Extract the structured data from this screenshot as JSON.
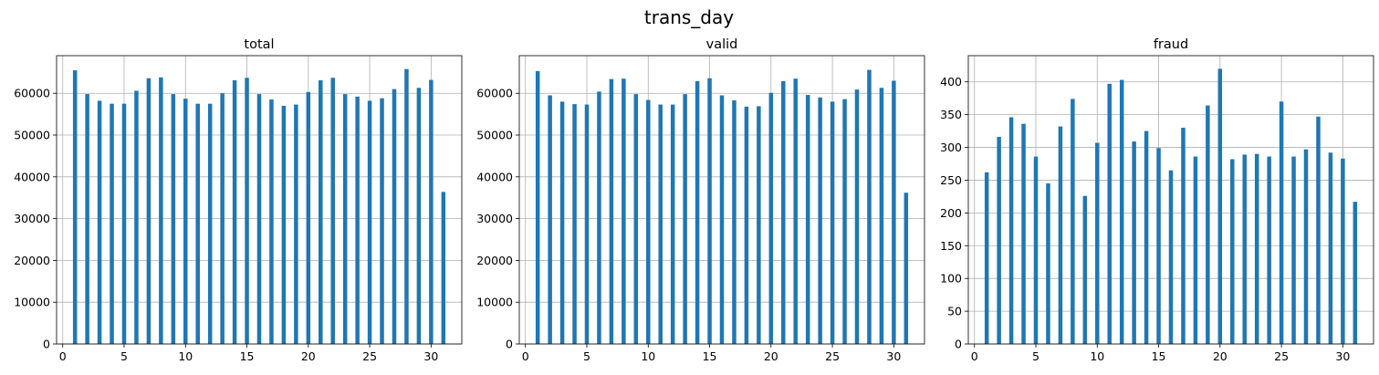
{
  "figure": {
    "suptitle": "trans_day"
  },
  "chart_data": [
    {
      "type": "bar",
      "title": "total",
      "xlabel": "",
      "ylabel": "",
      "xlim": [
        -0.5,
        32.5
      ],
      "ylim": [
        0,
        69000
      ],
      "grid": true,
      "x_ticks": [
        0,
        5,
        10,
        15,
        20,
        25,
        30
      ],
      "y_ticks": [
        0,
        10000,
        20000,
        30000,
        40000,
        50000,
        60000
      ],
      "bar_color": "#1f77b4",
      "x": [
        1,
        2,
        3,
        4,
        5,
        6,
        7,
        8,
        9,
        10,
        11,
        12,
        13,
        14,
        15,
        16,
        17,
        18,
        19,
        20,
        21,
        22,
        23,
        24,
        25,
        26,
        27,
        28,
        29,
        30,
        31
      ],
      "values": [
        65500,
        59800,
        58200,
        57500,
        57500,
        60600,
        63600,
        63800,
        59800,
        58700,
        57500,
        57500,
        60000,
        63100,
        63700,
        59800,
        58500,
        57000,
        57300,
        60300,
        63100,
        63700,
        59800,
        59200,
        58200,
        58800,
        61000,
        65800,
        61300,
        63200,
        36400
      ]
    },
    {
      "type": "bar",
      "title": "valid",
      "xlabel": "",
      "ylabel": "",
      "xlim": [
        -0.5,
        32.5
      ],
      "ylim": [
        0,
        69000
      ],
      "grid": true,
      "x_ticks": [
        0,
        5,
        10,
        15,
        20,
        25,
        30
      ],
      "y_ticks": [
        0,
        10000,
        20000,
        30000,
        40000,
        50000,
        60000
      ],
      "bar_color": "#1f77b4",
      "x": [
        1,
        2,
        3,
        4,
        5,
        6,
        7,
        8,
        9,
        10,
        11,
        12,
        13,
        14,
        15,
        16,
        17,
        18,
        19,
        20,
        21,
        22,
        23,
        24,
        25,
        26,
        27,
        28,
        29,
        30,
        31
      ],
      "values": [
        65300,
        59500,
        58000,
        57400,
        57300,
        60400,
        63400,
        63500,
        59800,
        58400,
        57300,
        57300,
        59800,
        62900,
        63600,
        59500,
        58300,
        56800,
        56900,
        60100,
        62900,
        63500,
        59600,
        59000,
        58000,
        58600,
        60900,
        65600,
        61300,
        63000,
        36200
      ]
    },
    {
      "type": "bar",
      "title": "fraud",
      "xlabel": "",
      "ylabel": "",
      "xlim": [
        -0.5,
        32.5
      ],
      "ylim": [
        0,
        440
      ],
      "grid": true,
      "x_ticks": [
        0,
        5,
        10,
        15,
        20,
        25,
        30
      ],
      "y_ticks": [
        0,
        50,
        100,
        150,
        200,
        250,
        300,
        350,
        400
      ],
      "bar_color": "#1f77b4",
      "x": [
        1,
        2,
        3,
        4,
        5,
        6,
        7,
        8,
        9,
        10,
        11,
        12,
        13,
        14,
        15,
        16,
        17,
        18,
        19,
        20,
        21,
        22,
        23,
        24,
        25,
        26,
        27,
        28,
        29,
        30,
        31
      ],
      "values": [
        262,
        316,
        346,
        336,
        286,
        245,
        332,
        374,
        226,
        307,
        397,
        403,
        309,
        325,
        299,
        265,
        330,
        286,
        364,
        420,
        282,
        289,
        290,
        286,
        370,
        286,
        297,
        347,
        292,
        283,
        217
      ]
    }
  ]
}
